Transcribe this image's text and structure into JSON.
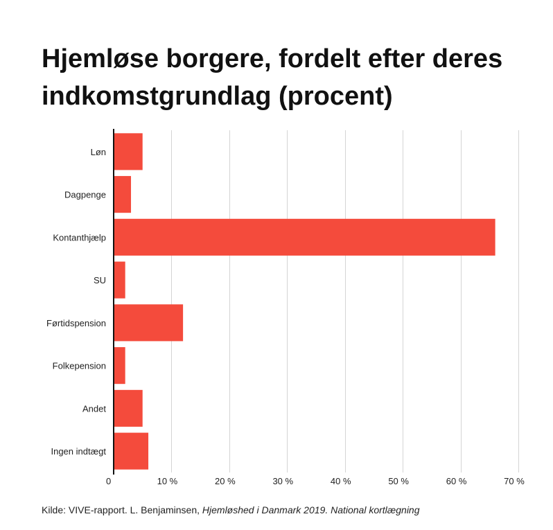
{
  "chart_data": {
    "type": "bar",
    "orientation": "horizontal",
    "title": "Hjemløse borgere, fordelt efter deres indkomstgrundlag (procent)",
    "categories": [
      "Løn",
      "Dagpenge",
      "Kontanthjælp",
      "SU",
      "Førtidspension",
      "Folkepension",
      "Andet",
      "Ingen indtægt"
    ],
    "values": [
      5,
      3,
      66,
      2,
      12,
      2,
      5,
      6
    ],
    "xlim": [
      0,
      70
    ],
    "x_ticks": [
      0,
      10,
      20,
      30,
      40,
      50,
      60,
      70
    ],
    "x_tick_labels": [
      "0",
      "10 %",
      "20 %",
      "30 %",
      "40 %",
      "50 %",
      "60 %",
      "70 %"
    ],
    "grid": true,
    "legend": "none",
    "bar_color": "#f44b3c"
  },
  "source": {
    "prefix": "Kilde: VIVE-rapport. L. Benjaminsen, ",
    "title": "Hjemløshed i Danmark 2019. National kortlægning"
  }
}
